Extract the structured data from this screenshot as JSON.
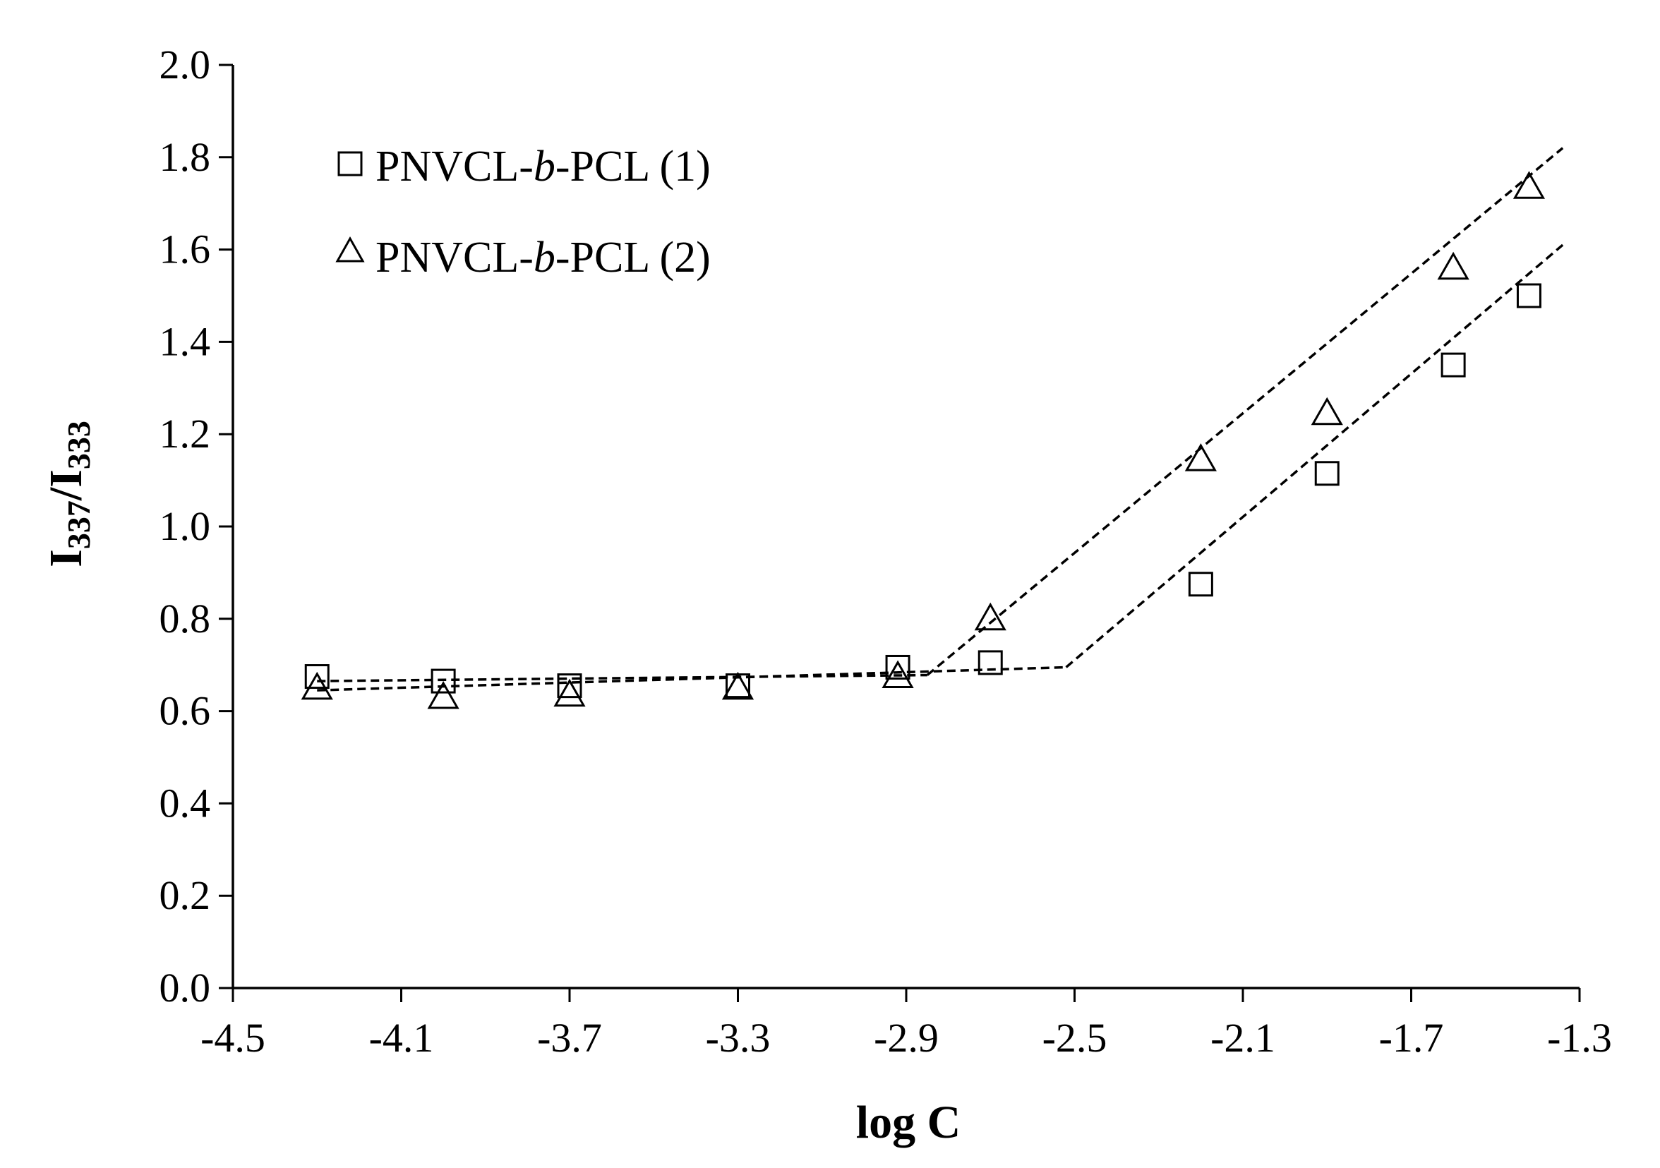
{
  "chart_data": {
    "type": "scatter",
    "title": "",
    "xlabel": "log C",
    "ylabel": {
      "main": "I",
      "sub1": "337",
      "sep": "/I",
      "sub2": "333"
    },
    "xlim": [
      -4.5,
      -1.3
    ],
    "ylim": [
      0.0,
      2.0
    ],
    "x_ticks": [
      -4.5,
      -4.1,
      -3.7,
      -3.3,
      -2.9,
      -2.5,
      -2.1,
      -1.7,
      -1.3
    ],
    "x_tick_labels": [
      "-4.5",
      "-4.1",
      "-3.7",
      "-3.3",
      "-2.9",
      "-2.5",
      "-2.1",
      "-1.7",
      "-1.3"
    ],
    "y_ticks": [
      0.0,
      0.2,
      0.4,
      0.6,
      0.8,
      1.0,
      1.2,
      1.4,
      1.6,
      1.8,
      2.0
    ],
    "y_tick_labels": [
      "0.0",
      "0.2",
      "0.4",
      "0.6",
      "0.8",
      "1.0",
      "1.2",
      "1.4",
      "1.6",
      "1.8",
      "2.0"
    ],
    "grid": false,
    "legend_position": "top-left",
    "series": [
      {
        "name_parts": [
          "PNVCL-",
          "b",
          "-PCL (1)"
        ],
        "marker": "square",
        "x": [
          -4.3,
          -4.0,
          -3.7,
          -3.3,
          -2.92,
          -2.7,
          -2.2,
          -1.9,
          -1.6,
          -1.42
        ],
        "y": [
          0.675,
          0.665,
          0.655,
          0.655,
          0.695,
          0.705,
          0.875,
          1.115,
          1.35,
          1.5
        ],
        "fit_lines": [
          {
            "x": [
              -4.3,
              -2.52
            ],
            "y": [
              0.645,
              0.695
            ]
          },
          {
            "x": [
              -2.52,
              -1.34
            ],
            "y": [
              0.695,
              1.61
            ]
          }
        ]
      },
      {
        "name_parts": [
          "PNVCL-",
          "b",
          "-PCL (2)"
        ],
        "marker": "triangle",
        "x": [
          -4.3,
          -4.0,
          -3.7,
          -3.3,
          -2.92,
          -2.7,
          -2.2,
          -1.9,
          -1.6,
          -1.42
        ],
        "y": [
          0.65,
          0.63,
          0.635,
          0.65,
          0.675,
          0.8,
          1.145,
          1.245,
          1.56,
          1.735
        ],
        "fit_lines": [
          {
            "x": [
              -4.3,
              -2.85
            ],
            "y": [
              0.665,
              0.678
            ]
          },
          {
            "x": [
              -2.85,
              -1.34
            ],
            "y": [
              0.678,
              1.82
            ]
          }
        ]
      }
    ]
  }
}
